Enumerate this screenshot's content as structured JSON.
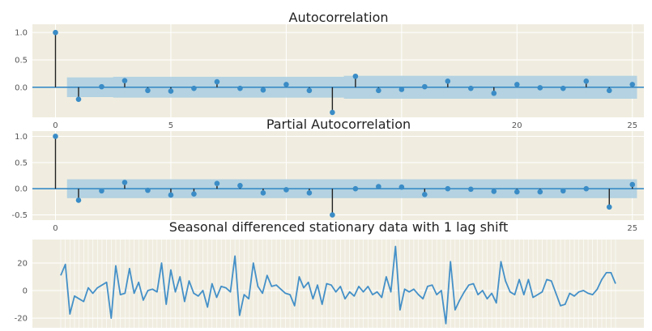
{
  "colors": {
    "figure_bg": "#ffffff",
    "axes_bg": "#f0ede0",
    "grid": "#ffffff",
    "stem": "#222222",
    "marker": "#3a8cc6",
    "confidence_band": "#a9cde0",
    "zero_line": "#3a8cc6",
    "series_line": "#4490c8"
  },
  "chart_data": [
    {
      "type": "stem",
      "title": "Autocorrelation",
      "xlim": [
        -1,
        25.5
      ],
      "ylim": [
        -0.55,
        1.15
      ],
      "xticks": [
        0,
        5,
        10,
        15,
        20,
        25
      ],
      "xtick_labels": [
        "0",
        "5",
        "",
        "",
        "20",
        "25"
      ],
      "yticks": [
        1.0,
        0.5,
        0.0
      ],
      "ytick_labels": [
        "1.0",
        "0.5",
        "0.0"
      ],
      "grid": true,
      "lags": [
        0,
        1,
        2,
        3,
        4,
        5,
        6,
        7,
        8,
        9,
        10,
        11,
        12,
        13,
        14,
        15,
        16,
        17,
        18,
        19,
        20,
        21,
        22,
        23,
        24,
        25
      ],
      "values": [
        1.0,
        -0.22,
        0.01,
        0.12,
        -0.06,
        -0.07,
        -0.02,
        0.1,
        -0.02,
        -0.05,
        0.05,
        -0.06,
        -0.46,
        0.2,
        -0.06,
        -0.04,
        0.01,
        0.11,
        -0.02,
        -0.11,
        0.05,
        -0.01,
        -0.02,
        0.11,
        -0.06,
        0.05
      ],
      "conf_upper": [
        0.0,
        0.18,
        0.18,
        0.19,
        0.19,
        0.19,
        0.19,
        0.19,
        0.19,
        0.19,
        0.19,
        0.19,
        0.19,
        0.21,
        0.21,
        0.21,
        0.21,
        0.21,
        0.21,
        0.21,
        0.21,
        0.21,
        0.21,
        0.21,
        0.21,
        0.21
      ]
    },
    {
      "type": "stem",
      "title": "Partial Autocorrelation",
      "xlim": [
        -1,
        25.5
      ],
      "ylim": [
        -0.6,
        1.1
      ],
      "xticks": [
        0,
        5,
        10,
        15,
        20,
        25
      ],
      "xtick_labels": [
        "0",
        "",
        "",
        "",
        "",
        "25"
      ],
      "yticks": [
        1.0,
        0.5,
        0.0,
        -0.5
      ],
      "ytick_labels": [
        "1.0",
        "0.5",
        "0.0",
        "-0.5"
      ],
      "grid": true,
      "lags": [
        0,
        1,
        2,
        3,
        4,
        5,
        6,
        7,
        8,
        9,
        10,
        11,
        12,
        13,
        14,
        15,
        16,
        17,
        18,
        19,
        20,
        21,
        22,
        23,
        24,
        25
      ],
      "values": [
        1.0,
        -0.22,
        -0.04,
        0.12,
        -0.03,
        -0.12,
        -0.1,
        0.1,
        0.06,
        -0.08,
        -0.02,
        -0.08,
        -0.5,
        0.0,
        0.04,
        0.03,
        -0.11,
        0.0,
        -0.01,
        -0.05,
        -0.06,
        -0.06,
        -0.04,
        0.0,
        -0.35,
        0.08
      ],
      "conf": 0.18
    },
    {
      "type": "line",
      "title": "Seasonal differenced stationary data with 1 lag shift",
      "ylim": [
        -27,
        37
      ],
      "yticks": [
        20,
        0,
        -20
      ],
      "ytick_labels": [
        "20",
        "0",
        "-20"
      ],
      "grid": true,
      "values": [
        11,
        19,
        -17,
        -4,
        -6,
        -8,
        2,
        -2,
        2,
        4,
        6,
        -20,
        18,
        -3,
        -2,
        16,
        -2,
        6,
        -7,
        0,
        1,
        -1,
        20,
        -10,
        15,
        -1,
        10,
        -8,
        7,
        -2,
        -4,
        0,
        -12,
        5,
        -5,
        3,
        2,
        -1,
        25,
        -18,
        -3,
        -6,
        20,
        3,
        -2,
        11,
        3,
        4,
        1,
        -2,
        -3,
        -11,
        10,
        2,
        6,
        -6,
        4,
        -10,
        5,
        4,
        -1,
        3,
        -6,
        -1,
        -4,
        3,
        -1,
        3,
        -3,
        -1,
        -5,
        10,
        -1,
        32,
        -14,
        1,
        -1,
        1,
        -3,
        -6,
        3,
        4,
        -3,
        0,
        -24,
        21,
        -14,
        -7,
        -1,
        4,
        5,
        -3,
        0,
        -6,
        -2,
        -9,
        21,
        7,
        -1,
        -3,
        8,
        -3,
        8,
        -5,
        -3,
        -1,
        8,
        7,
        -2,
        -11,
        -10,
        -2,
        -4,
        -1,
        0,
        -2,
        -3,
        1,
        8,
        13,
        13,
        5
      ]
    }
  ]
}
